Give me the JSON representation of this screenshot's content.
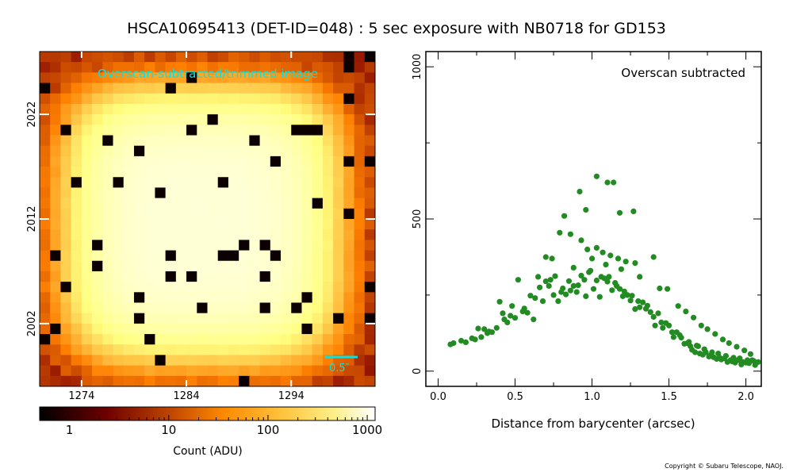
{
  "figure_title": "HSCA10695413 (DET-ID=048) :  5 sec exposure with NB0718 for GD153",
  "copyright": "Copyright © Subaru Telescope, NAOJ.",
  "colors": {
    "scatter_point": "#228b22",
    "image_overlay_text": "#00e5e5",
    "scale_bar": "#00e5e5"
  },
  "chart_data": [
    {
      "type": "heatmap",
      "title": "Overscan-subtracted/trimmed image",
      "x_ticks": [
        "1274",
        "1284",
        "1294"
      ],
      "x_tick_values": [
        1274,
        1284,
        1294
      ],
      "y_ticks": [
        "2002",
        "2012",
        "2022"
      ],
      "y_tick_values": [
        2002,
        2012,
        2022
      ],
      "x_range": [
        1270,
        1302
      ],
      "y_range": [
        1996,
        2028
      ],
      "scale_bar_label": "0.5″",
      "colormap": "afmhot",
      "colorbar": {
        "scale": "log",
        "range": [
          0.5,
          1200
        ],
        "ticks": [
          "1",
          "10",
          "100",
          "1000"
        ],
        "tick_values": [
          1,
          10,
          100,
          1000
        ],
        "label": "Count (ADU)"
      },
      "source_center": [
        1285.5,
        2011.5
      ],
      "peak_counts": 640
    },
    {
      "type": "scatter",
      "annotation": "Overscan subtracted",
      "xlabel": "Distance from barycenter (arcsec)",
      "x_ticks": [
        "0.0",
        "0.5",
        "1.0",
        "1.5",
        "2.0"
      ],
      "x_tick_values": [
        0.0,
        0.5,
        1.0,
        1.5,
        2.0
      ],
      "y_ticks": [
        "0",
        "500",
        "1000"
      ],
      "y_tick_values": [
        0,
        500,
        1000
      ],
      "xlim": [
        -0.08,
        2.1
      ],
      "ylim": [
        -50,
        1050
      ],
      "grid": false,
      "x": [
        0.08,
        0.1,
        0.15,
        0.18,
        0.22,
        0.24,
        0.26,
        0.28,
        0.3,
        0.32,
        0.33,
        0.35,
        0.38,
        0.4,
        0.42,
        0.43,
        0.45,
        0.47,
        0.48,
        0.5,
        0.52,
        0.55,
        0.56,
        0.58,
        0.6,
        0.62,
        0.63,
        0.65,
        0.66,
        0.68,
        0.7,
        0.72,
        0.73,
        0.75,
        0.76,
        0.78,
        0.8,
        0.81,
        0.83,
        0.85,
        0.86,
        0.88,
        0.9,
        0.91,
        0.93,
        0.95,
        0.96,
        0.98,
        1.0,
        1.01,
        1.03,
        1.05,
        1.06,
        1.08,
        1.1,
        1.11,
        1.13,
        1.15,
        1.16,
        1.18,
        1.2,
        1.21,
        1.23,
        1.25,
        1.26,
        1.28,
        1.3,
        1.31,
        1.33,
        1.35,
        1.36,
        1.38,
        1.4,
        1.41,
        1.43,
        1.45,
        1.46,
        1.48,
        1.5,
        1.52,
        1.53,
        1.55,
        1.57,
        1.58,
        1.6,
        1.62,
        1.64,
        1.65,
        1.67,
        1.69,
        1.7,
        1.72,
        1.74,
        1.76,
        1.77,
        1.79,
        1.81,
        1.83,
        1.84,
        1.86,
        1.88,
        1.9,
        1.91,
        1.93,
        1.95,
        1.97,
        1.98,
        2.0,
        2.02,
        2.04,
        2.06,
        2.08,
        0.82,
        0.86,
        0.93,
        0.97,
        1.03,
        1.07,
        1.12,
        1.17,
        1.22,
        1.28,
        0.92,
        1.03,
        1.1,
        1.14,
        0.79,
        0.96,
        1.18,
        1.27,
        1.4,
        0.7,
        0.74,
        0.88,
        0.99,
        1.09,
        1.19,
        1.31,
        1.44,
        1.49,
        1.56,
        1.61,
        1.66,
        1.71,
        1.75,
        1.8,
        1.85,
        1.89,
        1.94,
        1.99,
        2.03,
        1.63,
        1.68,
        1.73,
        1.78,
        1.82,
        1.87,
        1.92,
        1.96,
        2.01,
        2.05
      ],
      "y": [
        88,
        92,
        100,
        95,
        108,
        104,
        140,
        112,
        138,
        125,
        130,
        128,
        142,
        228,
        190,
        170,
        160,
        182,
        214,
        175,
        300,
        196,
        206,
        192,
        248,
        170,
        240,
        310,
        275,
        230,
        295,
        280,
        300,
        250,
        312,
        230,
        260,
        272,
        252,
        296,
        265,
        280,
        260,
        282,
        314,
        300,
        246,
        325,
        370,
        270,
        298,
        244,
        310,
        305,
        294,
        310,
        266,
        290,
        280,
        270,
        246,
        262,
        250,
        232,
        248,
        204,
        230,
        210,
        226,
        205,
        215,
        194,
        178,
        150,
        190,
        160,
        142,
        158,
        150,
        128,
        112,
        128,
        118,
        110,
        90,
        92,
        82,
        70,
        62,
        82,
        58,
        54,
        62,
        48,
        52,
        46,
        40,
        44,
        38,
        42,
        30,
        36,
        32,
        28,
        36,
        22,
        30,
        28,
        26,
        36,
        20,
        30,
        510,
        450,
        430,
        400,
        405,
        390,
        380,
        370,
        360,
        355,
        590,
        640,
        620,
        620,
        455,
        530,
        520,
        525,
        375,
        375,
        370,
        340,
        330,
        350,
        335,
        310,
        272,
        270,
        214,
        196,
        176,
        150,
        138,
        122,
        104,
        92,
        80,
        68,
        56,
        96,
        84,
        72,
        62,
        58,
        50,
        44,
        42,
        36,
        34
      ]
    }
  ]
}
